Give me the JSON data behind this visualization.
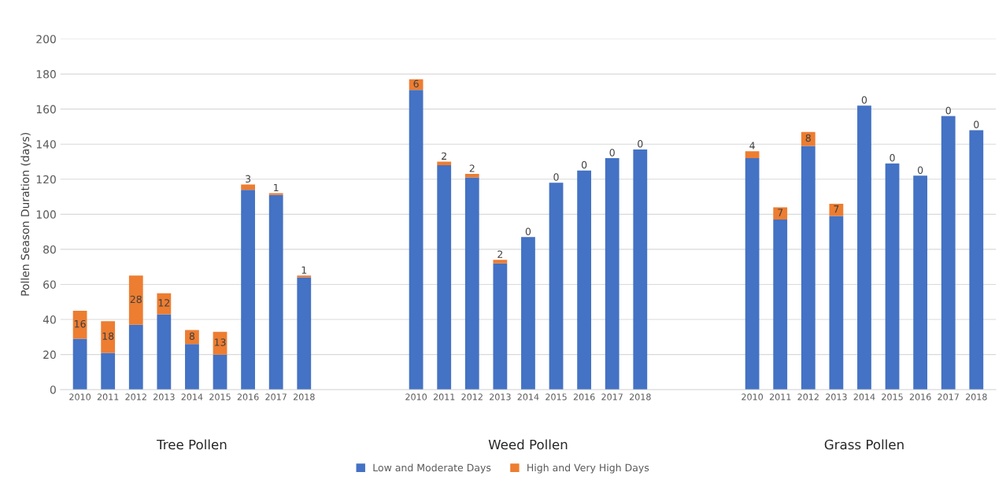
{
  "chart_data": {
    "type": "bar",
    "stacked": true,
    "ylabel": "Pollen Season Duration (days)",
    "categories": [
      "2010",
      "2011",
      "2012",
      "2013",
      "2014",
      "2015",
      "2016",
      "2017",
      "2018",
      null,
      null,
      null,
      "2010",
      "2011",
      "2012",
      "2013",
      "2014",
      "2015",
      "2016",
      "2017",
      "2018",
      null,
      null,
      null,
      "2010",
      "2011",
      "2012",
      "2013",
      "2014",
      "2015",
      "2016",
      "2017",
      "2018"
    ],
    "series": [
      {
        "name": "Low and Moderate Days",
        "color": "#4472c4",
        "values": [
          29,
          21,
          37,
          43,
          26,
          20,
          114,
          111,
          64,
          null,
          null,
          null,
          171,
          128,
          121,
          72,
          87,
          118,
          125,
          132,
          137,
          null,
          null,
          null,
          132,
          97,
          139,
          99,
          162,
          129,
          122,
          156,
          148
        ]
      },
      {
        "name": "High and Very High Days",
        "color": "#ed7d31",
        "values": [
          16,
          18,
          28,
          12,
          8,
          13,
          3,
          1,
          1,
          null,
          null,
          null,
          6,
          2,
          2,
          2,
          0,
          0,
          0,
          0,
          0,
          null,
          null,
          null,
          4,
          7,
          8,
          7,
          0,
          0,
          0,
          0,
          0
        ],
        "value_labels": [
          "16",
          "18",
          "28",
          "12",
          "8",
          "13",
          "3",
          "1",
          "1",
          null,
          null,
          null,
          "6",
          "2",
          "2",
          "2",
          "0",
          "0",
          "0",
          "0",
          "0",
          null,
          null,
          null,
          "4",
          "7",
          "8",
          "7",
          "0",
          "0",
          "0",
          "0",
          "0"
        ]
      }
    ],
    "annotations": [
      "Tree Pollen",
      "Weed Pollen",
      "Grass Pollen"
    ],
    "ylim": [
      0,
      200
    ],
    "yticks": [
      0,
      20,
      40,
      60,
      80,
      100,
      120,
      140,
      160,
      180,
      200
    ],
    "grid": "y",
    "legend": "bottom"
  }
}
